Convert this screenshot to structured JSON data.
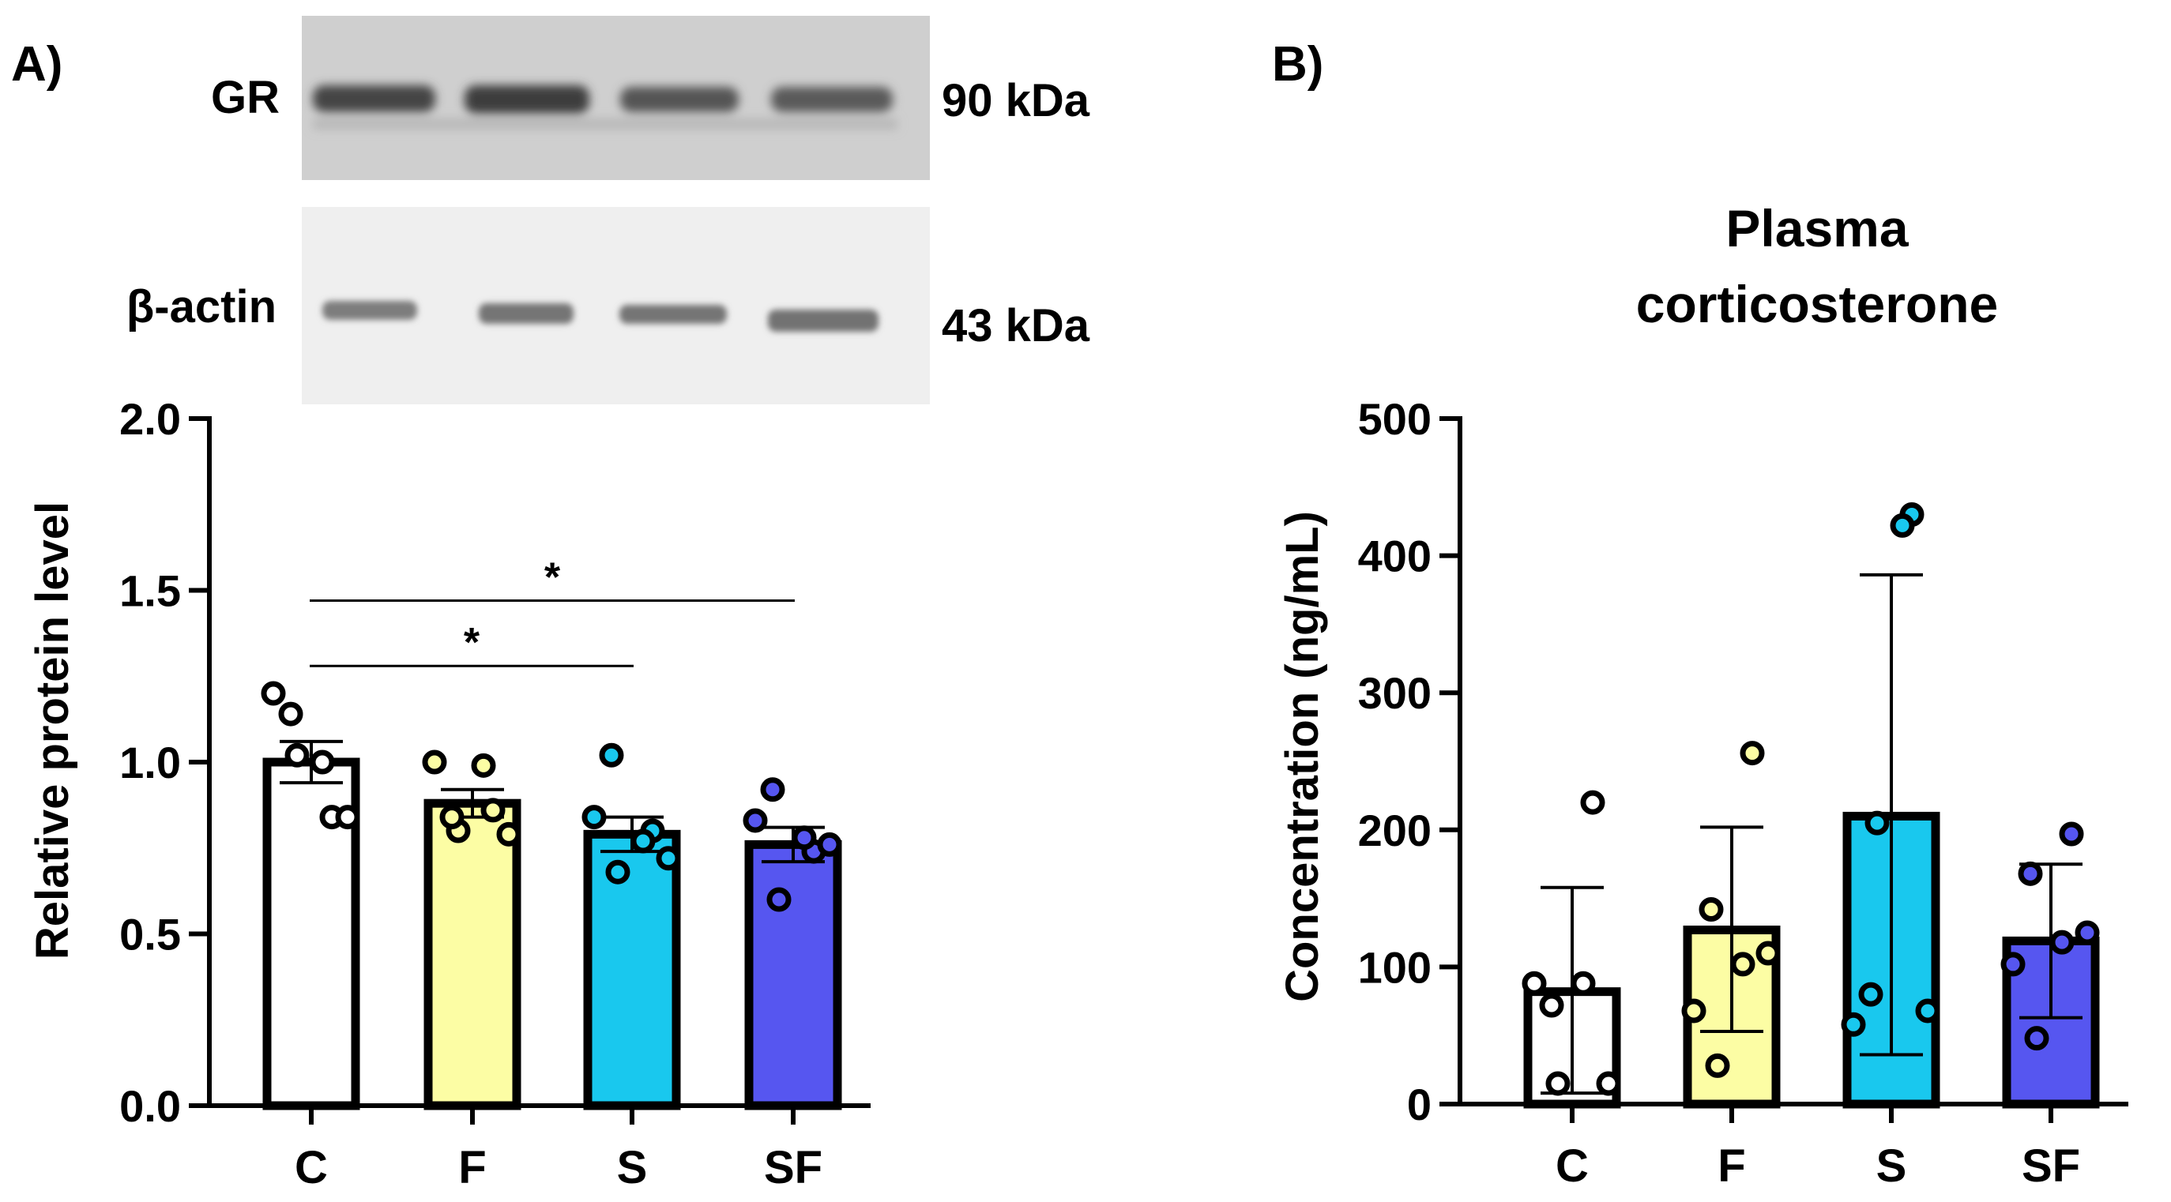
{
  "colors": {
    "C": "#ffffff",
    "F": "#fcfda4",
    "S": "#19c8ee",
    "SF": "#5656f0",
    "ink": "#000000"
  },
  "panel_a": {
    "label": "A)",
    "blot": {
      "top_label": "GR",
      "top_kda": "90 kDa",
      "bottom_label": "β-actin",
      "bottom_kda": "43 kDa"
    }
  },
  "panel_b": {
    "label": "B)"
  },
  "chart_data": [
    {
      "type": "bar",
      "panel": "A",
      "title": "",
      "xlabel": "",
      "ylabel": "Relative protein level",
      "ylim": [
        0,
        2.0
      ],
      "yticks": [
        0.0,
        0.5,
        1.0,
        1.5,
        2.0
      ],
      "ytick_labels": [
        "0.0",
        "0.5",
        "1.0",
        "1.5",
        "2.0"
      ],
      "categories": [
        "C",
        "F",
        "S",
        "SF"
      ],
      "values": [
        1.0,
        0.88,
        0.79,
        0.76
      ],
      "error_upper": [
        1.06,
        0.92,
        0.84,
        0.81
      ],
      "error_lower": [
        0.94,
        0.84,
        0.74,
        0.71
      ],
      "points": [
        [
          1.2,
          1.02,
          0.84,
          1.14,
          1.0,
          0.84
        ],
        [
          1.0,
          0.8,
          0.86,
          0.84,
          0.99,
          0.79
        ],
        [
          0.84,
          0.68,
          0.8,
          1.02,
          0.77,
          0.72
        ],
        [
          0.83,
          0.6,
          0.74,
          0.92,
          0.78,
          0.76
        ]
      ],
      "significance": [
        {
          "from": "C",
          "to": "S",
          "y": 1.28,
          "label": "*"
        },
        {
          "from": "C",
          "to": "SF",
          "y": 1.47,
          "label": "*"
        }
      ]
    },
    {
      "type": "bar",
      "panel": "B",
      "title": "Plasma corticosterone",
      "title_lines": [
        "Plasma",
        "corticosterone"
      ],
      "xlabel": "",
      "ylabel": "Concentration (ng/mL)",
      "ylim": [
        0,
        500
      ],
      "yticks": [
        0,
        100,
        200,
        300,
        400,
        500
      ],
      "ytick_labels": [
        "0",
        "100",
        "200",
        "300",
        "400",
        "500"
      ],
      "categories": [
        "C",
        "F",
        "S",
        "SF"
      ],
      "values": [
        82,
        127,
        210,
        119
      ],
      "error_upper": [
        158,
        202,
        386,
        175
      ],
      "error_lower": [
        8,
        53,
        36,
        63
      ],
      "points": [
        [
          88,
          15,
          220,
          72,
          88,
          15
        ],
        [
          68,
          28,
          256,
          142,
          102,
          110
        ],
        [
          58,
          205,
          430,
          80,
          422,
          68
        ],
        [
          102,
          48,
          197,
          168,
          118,
          125
        ]
      ]
    }
  ]
}
